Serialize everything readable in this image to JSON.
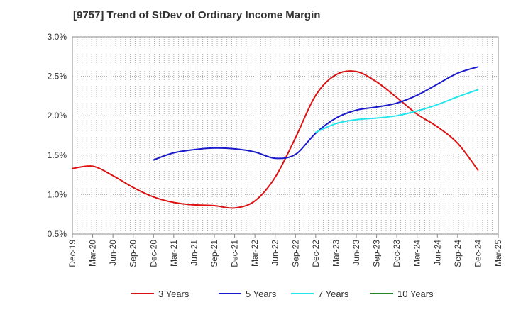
{
  "title": "[9757]  Trend of StDev of Ordinary Income Margin",
  "chart_data": {
    "type": "line",
    "title": "[9757]  Trend of StDev of Ordinary Income Margin",
    "xlabel": "",
    "ylabel": "",
    "x_ticks": [
      "Dec-19",
      "Mar-20",
      "Jun-20",
      "Sep-20",
      "Dec-20",
      "Mar-21",
      "Jun-21",
      "Sep-21",
      "Dec-21",
      "Mar-22",
      "Jun-22",
      "Sep-22",
      "Dec-22",
      "Mar-23",
      "Jun-23",
      "Sep-23",
      "Dec-23",
      "Mar-24",
      "Jun-24",
      "Sep-24",
      "Dec-24",
      "Mar-25"
    ],
    "y_ticks": [
      "0.5%",
      "1.0%",
      "1.5%",
      "2.0%",
      "2.5%",
      "3.0%"
    ],
    "ylim": [
      0.5,
      3.0
    ],
    "y_unit": "%",
    "grid": true,
    "legend_position": "bottom",
    "series": [
      {
        "name": "3 Years",
        "color": "#dd1111",
        "x": [
          "Dec-19",
          "Mar-20",
          "Jun-20",
          "Sep-20",
          "Dec-20",
          "Mar-21",
          "Jun-21",
          "Sep-21",
          "Dec-21",
          "Mar-22",
          "Jun-22",
          "Sep-22",
          "Dec-22",
          "Mar-23",
          "Jun-23",
          "Sep-23",
          "Dec-23",
          "Mar-24",
          "Jun-24",
          "Sep-24",
          "Dec-24"
        ],
        "values": [
          1.33,
          1.36,
          1.24,
          1.09,
          0.97,
          0.9,
          0.87,
          0.86,
          0.83,
          0.92,
          1.22,
          1.72,
          2.26,
          2.52,
          2.56,
          2.43,
          2.23,
          2.02,
          1.86,
          1.65,
          1.31
        ]
      },
      {
        "name": "5 Years",
        "color": "#1a1acc",
        "x": [
          "Dec-20",
          "Mar-21",
          "Jun-21",
          "Sep-21",
          "Dec-21",
          "Mar-22",
          "Jun-22",
          "Sep-22",
          "Dec-22",
          "Mar-23",
          "Jun-23",
          "Sep-23",
          "Dec-23",
          "Mar-24",
          "Jun-24",
          "Sep-24",
          "Dec-24"
        ],
        "values": [
          1.44,
          1.53,
          1.57,
          1.59,
          1.58,
          1.54,
          1.46,
          1.51,
          1.78,
          1.97,
          2.07,
          2.11,
          2.16,
          2.26,
          2.4,
          2.54,
          2.62
        ]
      },
      {
        "name": "7 Years",
        "color": "#22e5ee",
        "x": [
          "Dec-22",
          "Mar-23",
          "Jun-23",
          "Sep-23",
          "Dec-23",
          "Mar-24",
          "Jun-24",
          "Sep-24",
          "Dec-24"
        ],
        "values": [
          1.79,
          1.9,
          1.95,
          1.97,
          2.0,
          2.06,
          2.14,
          2.24,
          2.33
        ]
      },
      {
        "name": "10 Years",
        "color": "#228822",
        "x": [],
        "values": []
      }
    ]
  }
}
